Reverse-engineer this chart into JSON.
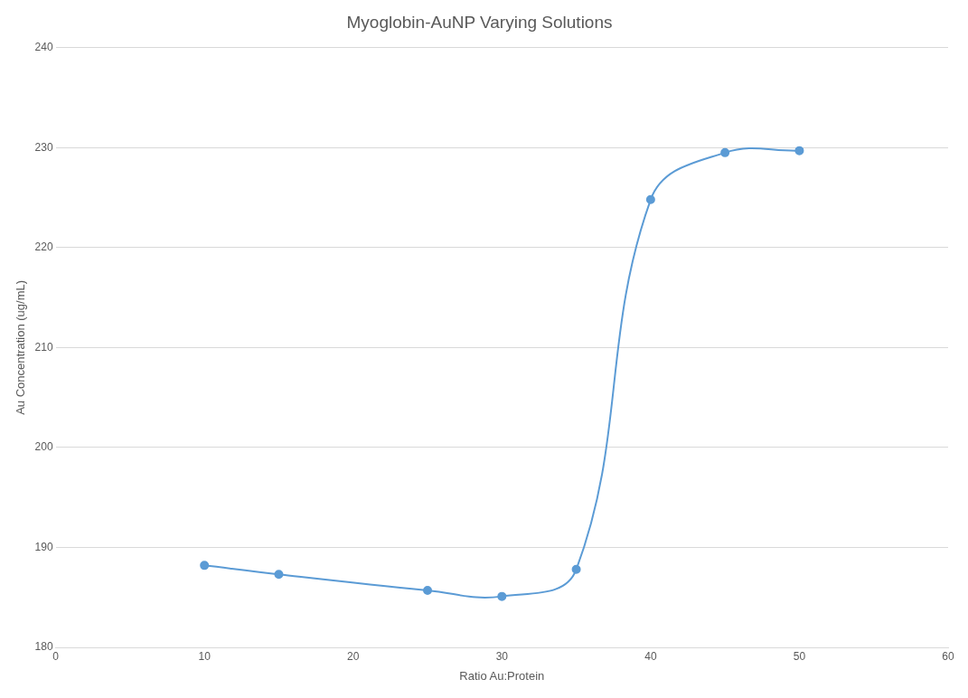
{
  "chart_data": {
    "type": "line",
    "title": "Myoglobin-AuNP Varying Solutions",
    "xlabel": "Ratio Au:Protein",
    "ylabel": "Au Concentration (ug/mL)",
    "x": [
      10,
      15,
      25,
      30,
      35,
      40,
      45,
      50
    ],
    "series": [
      {
        "color": "#5b9bd5",
        "values": [
          188.2,
          187.3,
          185.7,
          185.1,
          187.8,
          224.8,
          229.5,
          229.7
        ]
      }
    ],
    "xlim": [
      0,
      60
    ],
    "xticks": [
      0,
      10,
      20,
      30,
      40,
      50,
      60
    ],
    "ylim": [
      180,
      240
    ],
    "yticks": [
      180,
      190,
      200,
      210,
      220,
      230,
      240
    ],
    "grid": "y",
    "legend": false,
    "marker": "circle",
    "line_style": "solid"
  }
}
